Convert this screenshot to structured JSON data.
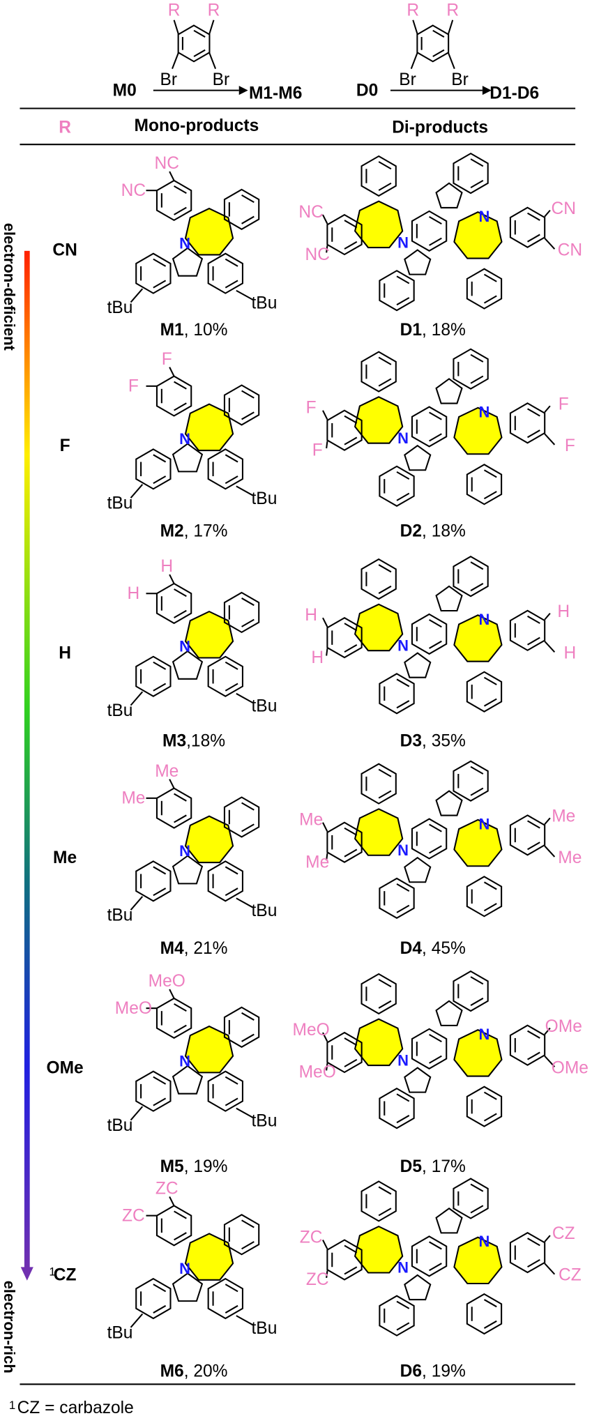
{
  "header": {
    "r": "R",
    "br": "Br",
    "mono_start": "M0",
    "mono_end": "M1-M6",
    "di_start": "D0",
    "di_end": "D1-D6"
  },
  "columns": {
    "r": "R",
    "mono": "Mono-products",
    "di": "Di-products"
  },
  "gradient": {
    "top": "electron-deficient",
    "bottom": "electron-rich"
  },
  "labels": {
    "n": "N",
    "tbu": "tBu"
  },
  "rows": [
    {
      "r": "CN",
      "mono_subst": [
        "NC",
        "NC"
      ],
      "mono_id": "M1",
      "mono_yield": ", 10%",
      "di_subst": [
        "NC",
        "NC",
        "CN",
        "CN"
      ],
      "di_id": "D1",
      "di_yield": ", 18%"
    },
    {
      "r": "F",
      "mono_subst": [
        "F",
        "F"
      ],
      "mono_id": "M2",
      "mono_yield": ", 17%",
      "di_subst": [
        "F",
        "F",
        "F",
        "F"
      ],
      "di_id": "D2",
      "di_yield": ", 18%"
    },
    {
      "r": "H",
      "mono_subst": [
        "H",
        "H"
      ],
      "mono_id": "M3",
      "mono_yield": ",18%",
      "di_subst": [
        "H",
        "H",
        "H",
        "H"
      ],
      "di_id": "D3",
      "di_yield": ", 35%"
    },
    {
      "r": "Me",
      "mono_subst": [
        "Me",
        "Me"
      ],
      "mono_id": "M4",
      "mono_yield": ", 21%",
      "di_subst": [
        "Me",
        "Me",
        "Me",
        "Me"
      ],
      "di_id": "D4",
      "di_yield": ", 45%"
    },
    {
      "r": "OMe",
      "mono_subst": [
        "MeO",
        "MeO"
      ],
      "mono_id": "M5",
      "mono_yield": ", 19%",
      "di_subst": [
        "MeO",
        "MeO",
        "OMe",
        "OMe"
      ],
      "di_id": "D5",
      "di_yield": ", 17%"
    },
    {
      "r": "CZ",
      "note": "1",
      "mono_subst": [
        "ZC",
        "ZC"
      ],
      "mono_id": "M6",
      "mono_yield": ", 20%",
      "di_subst": [
        "ZC",
        "ZC",
        "CZ",
        "CZ"
      ],
      "di_id": "D6",
      "di_yield": ", 19%"
    }
  ],
  "footnote": {
    "mark": "1",
    "text": "CZ = carbazole"
  }
}
